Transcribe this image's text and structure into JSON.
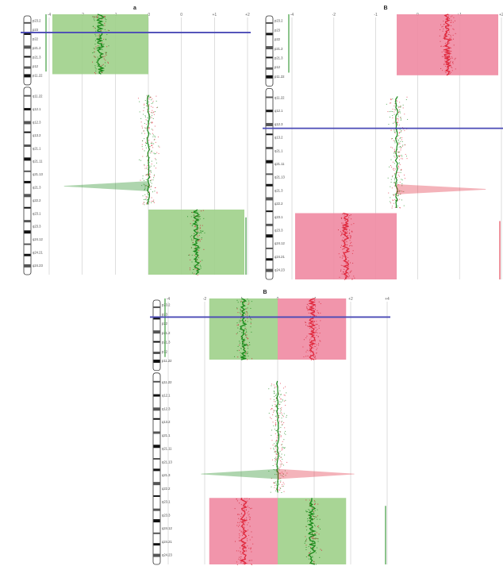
{
  "chart_data": [
    {
      "type": "area",
      "panel": "A",
      "panel_label": "a",
      "x_ticks": [
        "-4",
        "-2",
        "-1",
        "-0",
        "0",
        "+1",
        "+2"
      ],
      "xlim": [
        -4,
        4
      ],
      "bands_p": [
        "p23.2",
        "p23",
        "p22",
        "p21.2",
        "p21.3",
        "p12",
        "p11.22"
      ],
      "bands_q": [
        "q11.22",
        "q12.1",
        "q12.3",
        "q13.2",
        "q21.1",
        "q21.11",
        "q21.13",
        "q21.3",
        "q22.2",
        "q23.1",
        "q23.3",
        "q24.12",
        "q24.21",
        "q24.23"
      ],
      "regions": [
        {
          "from": 0.0,
          "to": 0.23,
          "log2_ratio": -1.1,
          "call": "loss"
        },
        {
          "from": 0.31,
          "to": 0.73,
          "log2_ratio": 0.0,
          "call": "normal"
        },
        {
          "from": 0.75,
          "to": 1.0,
          "log2_ratio": 1.1,
          "call": "loss"
        }
      ],
      "spike": {
        "pos": 0.66,
        "log2_ratio": -3.4
      },
      "cursor_line": 0.07,
      "colors": {
        "loss": "#9fd08a",
        "gain": "#f08aa2",
        "green": "#1a8a1a",
        "red": "#e0283c",
        "cursor": "#4a4ab6"
      }
    },
    {
      "type": "area",
      "panel": "B",
      "panel_label": "B",
      "x_ticks": [
        "-4",
        "-2",
        "-1",
        "0",
        "+1",
        "+2"
      ],
      "xlim": [
        -4,
        4
      ],
      "bands_p": [
        "p23.2",
        "p23",
        "p22",
        "p21.2",
        "p21.3",
        "p12",
        "p11.22"
      ],
      "bands_q": [
        "q11.22",
        "q12.1",
        "q12.3",
        "q13.2",
        "q21.1",
        "q21.11",
        "q21.13",
        "q21.3",
        "q22.2",
        "q23.1",
        "q23.3",
        "q24.12",
        "q24.21",
        "q24.23"
      ],
      "regions": [
        {
          "from": 0.0,
          "to": 0.23,
          "log2_ratio": 1.1,
          "call": "gain"
        },
        {
          "from": 0.31,
          "to": 0.73,
          "log2_ratio": 0.0,
          "call": "normal"
        },
        {
          "from": 0.75,
          "to": 1.0,
          "log2_ratio": -1.1,
          "call": "gain"
        }
      ],
      "spike": {
        "pos": 0.66,
        "log2_ratio": 3.4
      },
      "cursor_line": 0.43,
      "colors": {
        "loss": "#9fd08a",
        "gain": "#f08aa2",
        "green": "#1a8a1a",
        "red": "#e0283c",
        "cursor": "#4a4ab6"
      }
    },
    {
      "type": "area",
      "panel": "C",
      "panel_label": "B",
      "x_ticks": [
        "-4",
        "-2",
        "-1",
        "0",
        "+1",
        "+2",
        "+4"
      ],
      "xlim": [
        -4,
        4
      ],
      "bands_p": [
        "p23.2",
        "p23",
        "p22",
        "p21.2",
        "p21.3",
        "p12",
        "p11.22"
      ],
      "bands_q": [
        "q11.22",
        "q12.1",
        "q12.3",
        "q13.2",
        "q21.1",
        "q21.11",
        "q21.13",
        "q21.3",
        "q22.2",
        "q23.1",
        "q23.3",
        "q24.12",
        "q24.21",
        "q24.23"
      ],
      "regions": [
        {
          "from": 0.0,
          "to": 0.23,
          "log2_ratio": 1.1,
          "call": "mixed"
        },
        {
          "from": 0.31,
          "to": 0.73,
          "log2_ratio": 0.0,
          "call": "normal"
        },
        {
          "from": 0.75,
          "to": 1.0,
          "log2_ratio": 1.1,
          "call": "mixed"
        }
      ],
      "spike": {
        "pos": 0.66,
        "log2_ratio": 2.8
      },
      "cursor_line": 0.07,
      "colors": {
        "loss": "#9fd08a",
        "gain": "#f08aa2",
        "green": "#1a8a1a",
        "red": "#e0283c",
        "cursor": "#4a4ab6"
      }
    }
  ]
}
